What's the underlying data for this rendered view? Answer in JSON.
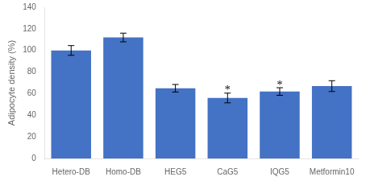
{
  "chart_data": {
    "type": "bar",
    "categories": [
      "Hetero-DB",
      "Homo-DB",
      "HEG5",
      "CaG5",
      "IQG5",
      "Metformin10"
    ],
    "values": [
      100,
      112,
      65,
      56,
      62,
      67
    ],
    "errors": [
      4.5,
      4.0,
      3.5,
      4.5,
      3.5,
      5.0
    ],
    "color": "#4472C4",
    "ylabel": "Adipocyte density (%)",
    "ylim": [
      0,
      140
    ],
    "yticks": [
      0,
      20,
      40,
      60,
      80,
      100,
      120,
      140
    ],
    "grid": false,
    "annotations": [
      {
        "x": "CaG5",
        "text": "*"
      },
      {
        "x": "IQG5",
        "text": "*"
      }
    ]
  }
}
